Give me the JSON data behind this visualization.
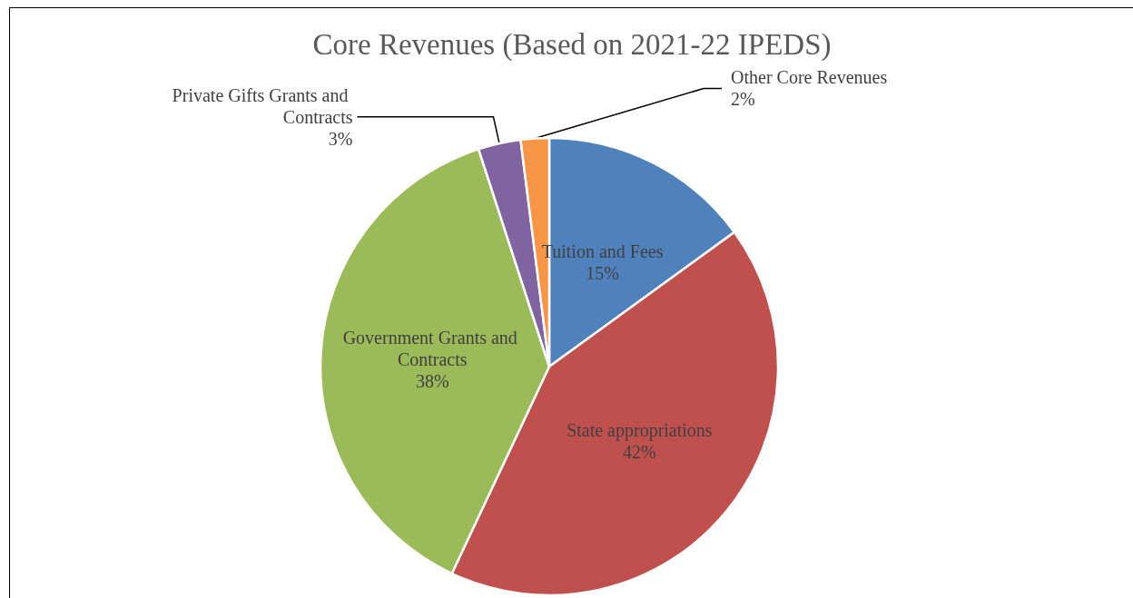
{
  "chart_data": {
    "type": "pie",
    "title": "Core Revenues (Based on 2021-22 IPEDS)",
    "categories": [
      "Tuition and Fees",
      "State appropriations",
      "Government Grants and Contracts",
      "Private Gifts Grants and Contracts",
      "Other Core Revenues"
    ],
    "values": [
      15,
      42,
      38,
      3,
      2
    ],
    "colors": [
      "#4f81bd",
      "#c0504d",
      "#9bbb59",
      "#8064a2",
      "#f79646"
    ],
    "value_labels": [
      "15%",
      "42%",
      "38%",
      "3%",
      "2%"
    ],
    "legend": false
  }
}
